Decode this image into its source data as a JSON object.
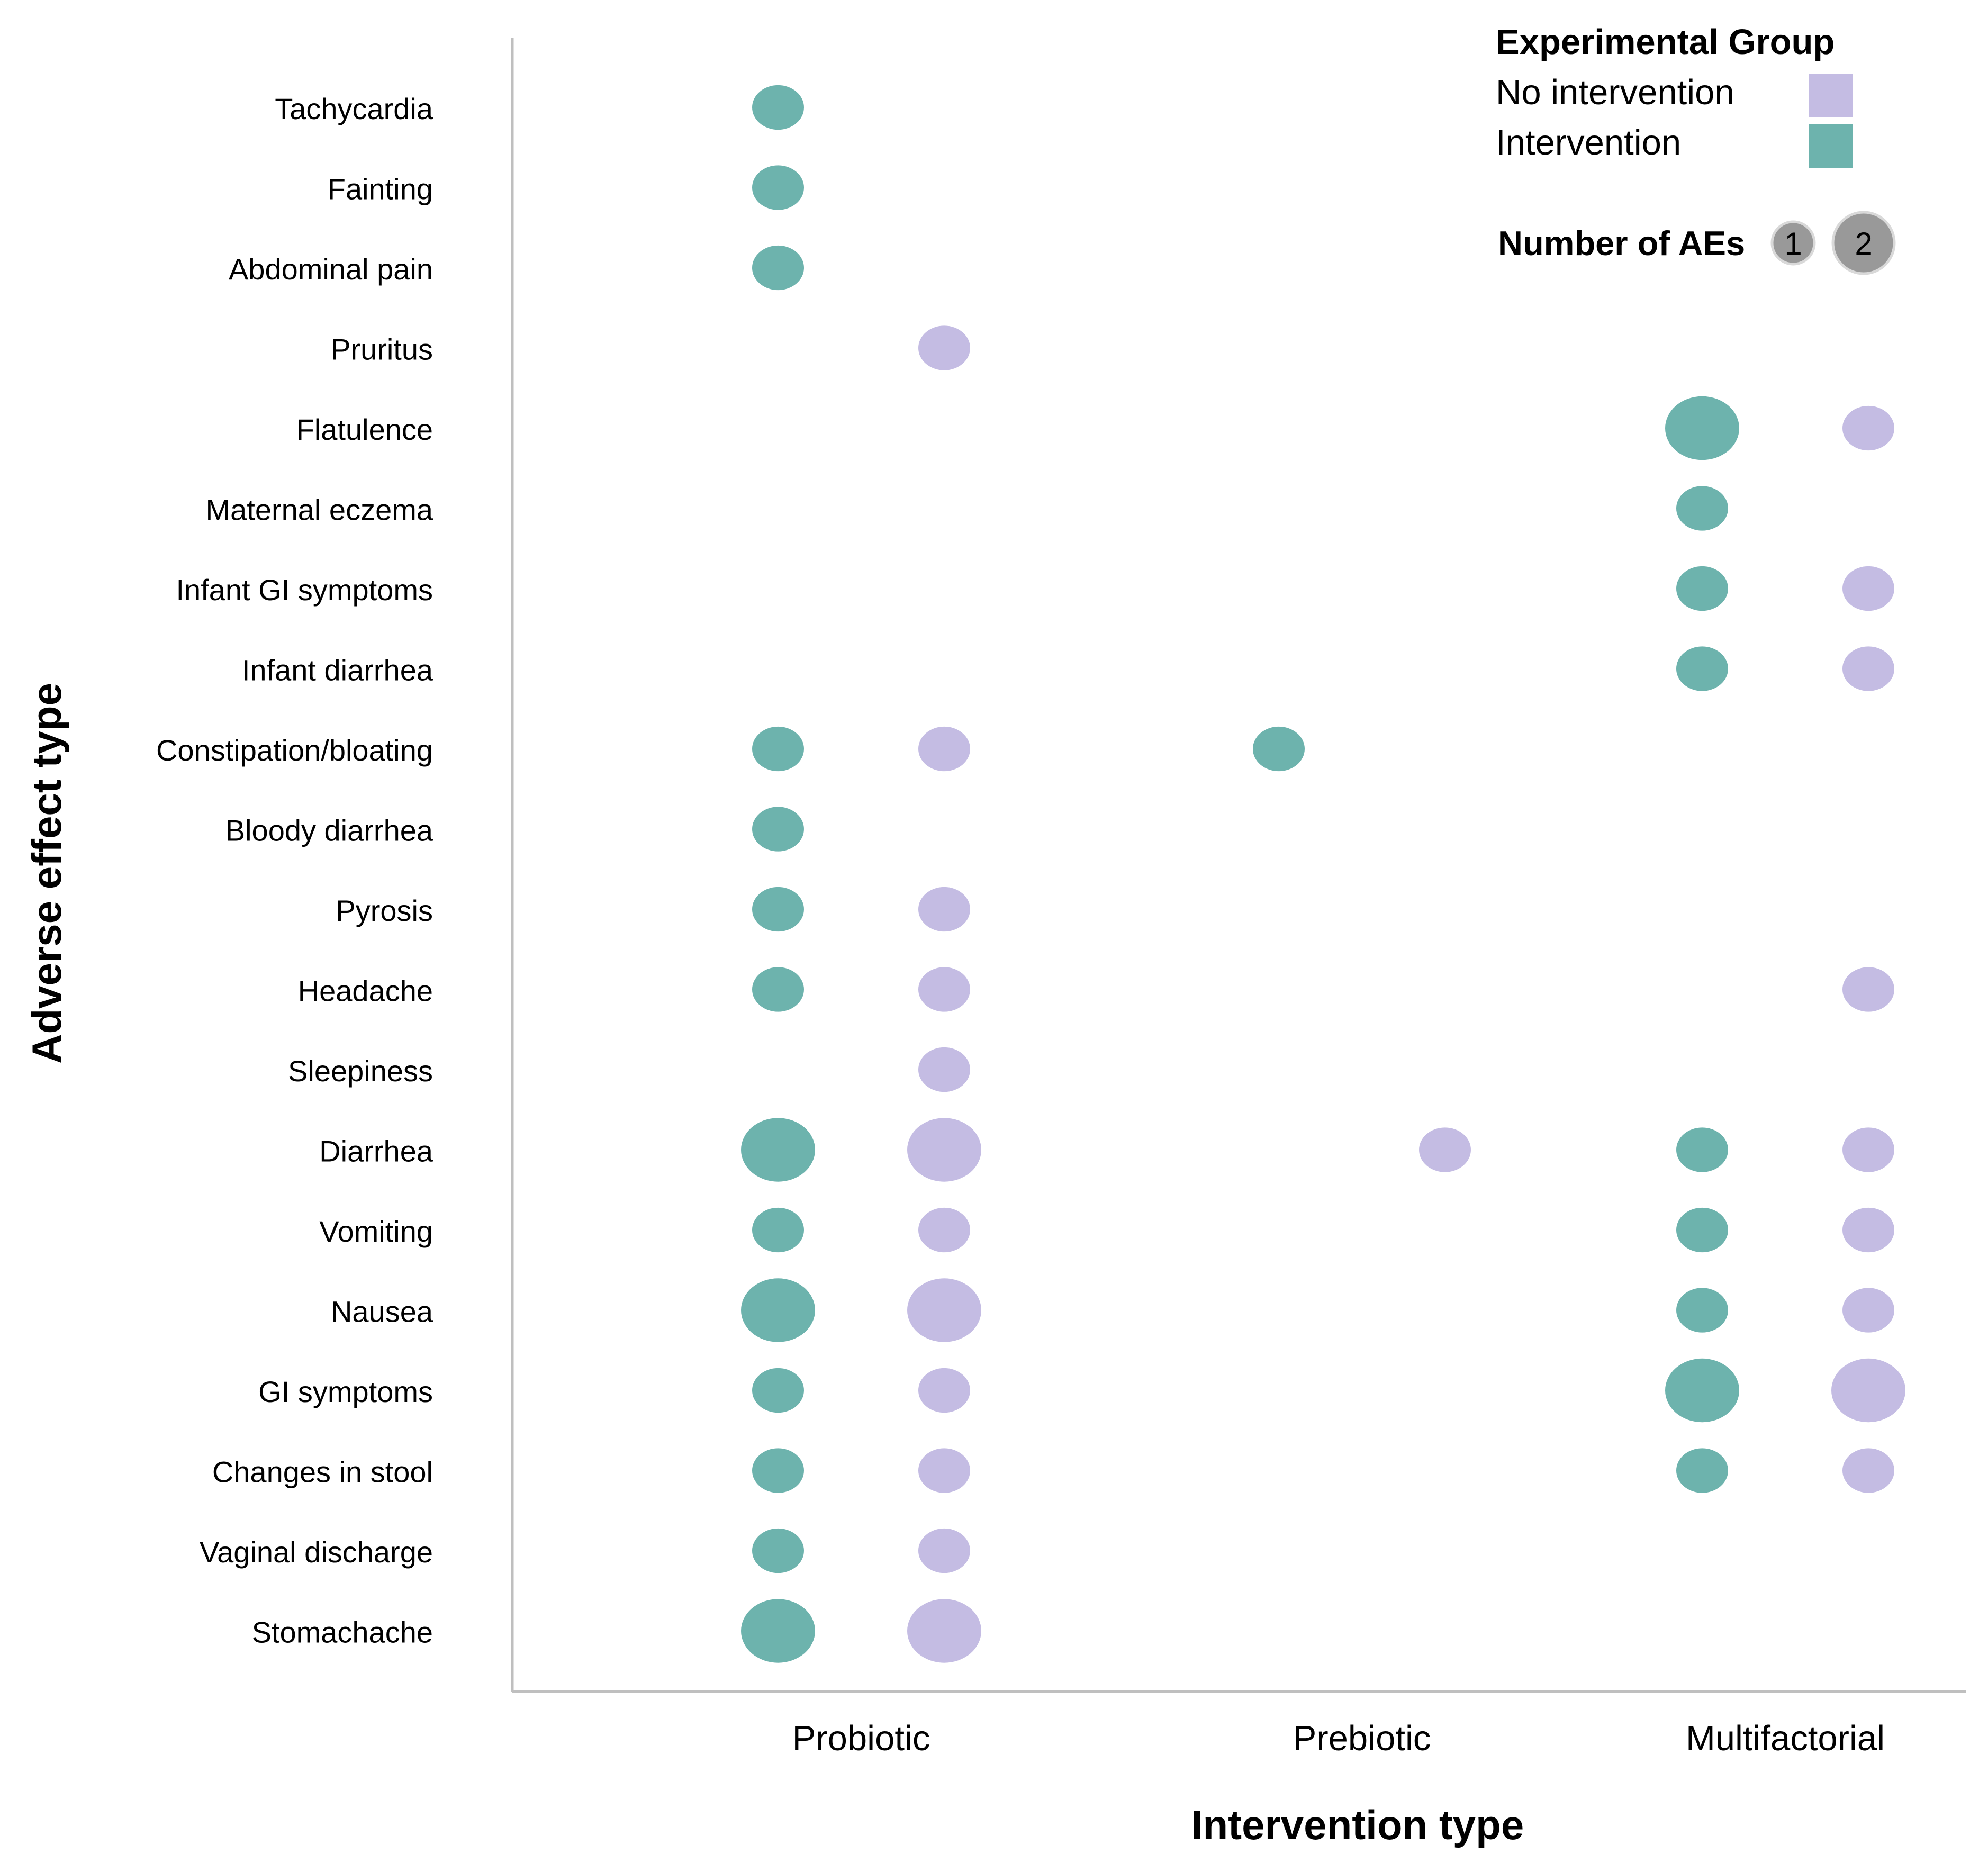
{
  "chart_data": {
    "type": "bubble",
    "title": "",
    "xlabel": "Intervention type",
    "ylabel": "Adverse effect type",
    "grid": false,
    "categories": [
      "Probiotic",
      "Prebiotic",
      "Multifactorial"
    ],
    "effects": [
      "Tachycardia",
      "Fainting",
      "Abdominal pain",
      "Pruritus",
      "Flatulence",
      "Maternal eczema",
      "Infant GI symptoms",
      "Infant diarrhea",
      "Constipation/bloating",
      "Bloody diarrhea",
      "Pyrosis",
      "Headache",
      "Sleepiness",
      "Diarrhea",
      "Vomiting",
      "Nausea",
      "GI symptoms",
      "Changes in stool",
      "Vaginal discharge",
      "Stomachache"
    ],
    "series": [
      {
        "name": "Intervention",
        "color": "#6db3ad",
        "points": [
          {
            "category": "Probiotic",
            "effect": "Tachycardia",
            "count": 1
          },
          {
            "category": "Probiotic",
            "effect": "Fainting",
            "count": 1
          },
          {
            "category": "Probiotic",
            "effect": "Abdominal pain",
            "count": 1
          },
          {
            "category": "Probiotic",
            "effect": "Constipation/bloating",
            "count": 1
          },
          {
            "category": "Probiotic",
            "effect": "Bloody diarrhea",
            "count": 1
          },
          {
            "category": "Probiotic",
            "effect": "Pyrosis",
            "count": 1
          },
          {
            "category": "Probiotic",
            "effect": "Headache",
            "count": 1
          },
          {
            "category": "Probiotic",
            "effect": "Diarrhea",
            "count": 2
          },
          {
            "category": "Probiotic",
            "effect": "Vomiting",
            "count": 1
          },
          {
            "category": "Probiotic",
            "effect": "Nausea",
            "count": 2
          },
          {
            "category": "Probiotic",
            "effect": "GI symptoms",
            "count": 1
          },
          {
            "category": "Probiotic",
            "effect": "Changes in stool",
            "count": 1
          },
          {
            "category": "Probiotic",
            "effect": "Vaginal discharge",
            "count": 1
          },
          {
            "category": "Probiotic",
            "effect": "Stomachache",
            "count": 2
          },
          {
            "category": "Prebiotic",
            "effect": "Constipation/bloating",
            "count": 1
          },
          {
            "category": "Multifactorial",
            "effect": "Flatulence",
            "count": 2
          },
          {
            "category": "Multifactorial",
            "effect": "Maternal eczema",
            "count": 1
          },
          {
            "category": "Multifactorial",
            "effect": "Infant GI symptoms",
            "count": 1
          },
          {
            "category": "Multifactorial",
            "effect": "Infant diarrhea",
            "count": 1
          },
          {
            "category": "Multifactorial",
            "effect": "Diarrhea",
            "count": 1
          },
          {
            "category": "Multifactorial",
            "effect": "Vomiting",
            "count": 1
          },
          {
            "category": "Multifactorial",
            "effect": "Nausea",
            "count": 1
          },
          {
            "category": "Multifactorial",
            "effect": "GI symptoms",
            "count": 2
          },
          {
            "category": "Multifactorial",
            "effect": "Changes in stool",
            "count": 1
          }
        ]
      },
      {
        "name": "No intervention",
        "color": "#c4bce3",
        "points": [
          {
            "category": "Probiotic",
            "effect": "Pruritus",
            "count": 1
          },
          {
            "category": "Probiotic",
            "effect": "Constipation/bloating",
            "count": 1
          },
          {
            "category": "Probiotic",
            "effect": "Pyrosis",
            "count": 1
          },
          {
            "category": "Probiotic",
            "effect": "Headache",
            "count": 1
          },
          {
            "category": "Probiotic",
            "effect": "Sleepiness",
            "count": 1
          },
          {
            "category": "Probiotic",
            "effect": "Diarrhea",
            "count": 2
          },
          {
            "category": "Probiotic",
            "effect": "Vomiting",
            "count": 1
          },
          {
            "category": "Probiotic",
            "effect": "Nausea",
            "count": 2
          },
          {
            "category": "Probiotic",
            "effect": "GI symptoms",
            "count": 1
          },
          {
            "category": "Probiotic",
            "effect": "Changes in stool",
            "count": 1
          },
          {
            "category": "Probiotic",
            "effect": "Vaginal discharge",
            "count": 1
          },
          {
            "category": "Probiotic",
            "effect": "Stomachache",
            "count": 2
          },
          {
            "category": "Prebiotic",
            "effect": "Diarrhea",
            "count": 1
          },
          {
            "category": "Multifactorial",
            "effect": "Flatulence",
            "count": 1
          },
          {
            "category": "Multifactorial",
            "effect": "Infant GI symptoms",
            "count": 1
          },
          {
            "category": "Multifactorial",
            "effect": "Infant diarrhea",
            "count": 1
          },
          {
            "category": "Multifactorial",
            "effect": "Headache",
            "count": 1
          },
          {
            "category": "Multifactorial",
            "effect": "Diarrhea",
            "count": 1
          },
          {
            "category": "Multifactorial",
            "effect": "Vomiting",
            "count": 1
          },
          {
            "category": "Multifactorial",
            "effect": "Nausea",
            "count": 1
          },
          {
            "category": "Multifactorial",
            "effect": "GI symptoms",
            "count": 2
          },
          {
            "category": "Multifactorial",
            "effect": "Changes in stool",
            "count": 1
          }
        ]
      }
    ],
    "legend": {
      "placement": "top-right",
      "title": "Experimental Group",
      "entries": [
        {
          "label": "No intervention",
          "color": "#c4bce3"
        },
        {
          "label": "Intervention",
          "color": "#6db3ad"
        }
      ],
      "size_title": "Number of AEs",
      "size_entries": [
        {
          "label": "1",
          "count": 1
        },
        {
          "label": "2",
          "count": 2
        }
      ],
      "size_color": "#999999"
    }
  }
}
